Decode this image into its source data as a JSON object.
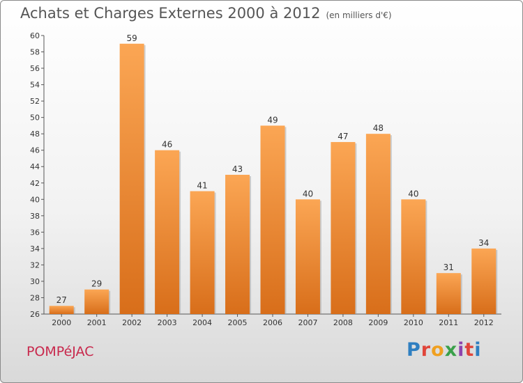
{
  "header": {
    "title": "Achats et Charges Externes 2000 à 2012",
    "unit": "(en milliers d'€)"
  },
  "footer": {
    "town": "POMPéJAC",
    "logo": "Proxiti"
  },
  "colors": {
    "bar_light": "#fba654",
    "bar_dark": "#d86e1a",
    "town": "#c8284c"
  },
  "chart_data": {
    "type": "bar",
    "title": "Achats et Charges Externes 2000 à 2012",
    "subtitle": "(en milliers d'€)",
    "categories": [
      "2000",
      "2001",
      "2002",
      "2003",
      "2004",
      "2005",
      "2006",
      "2007",
      "2008",
      "2009",
      "2010",
      "2011",
      "2012"
    ],
    "values": [
      27,
      29,
      59,
      46,
      41,
      43,
      49,
      40,
      47,
      48,
      40,
      31,
      34
    ],
    "ylim": [
      26,
      60
    ],
    "ytick_step": 2,
    "grid": false,
    "xlabel": "",
    "ylabel": ""
  }
}
